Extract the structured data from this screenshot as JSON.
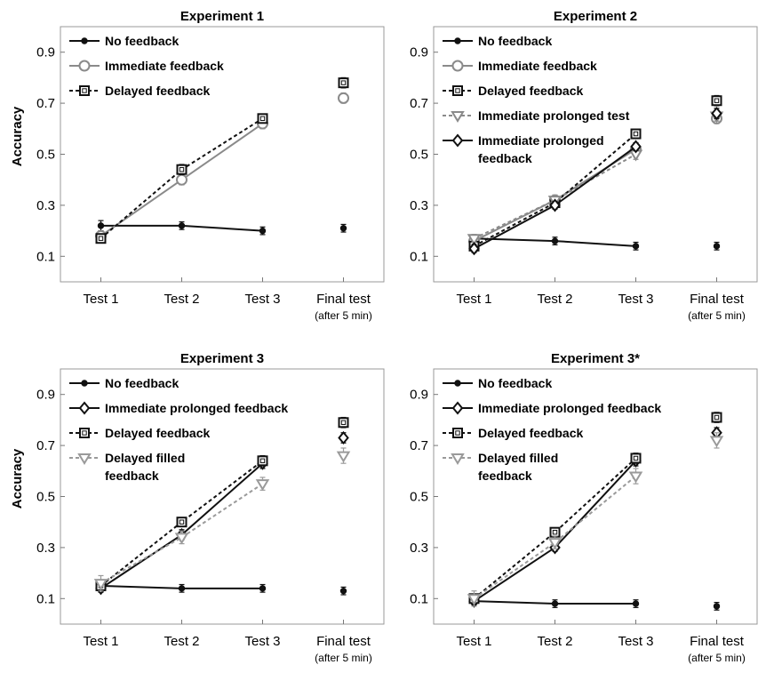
{
  "chart_data": [
    {
      "type": "line",
      "title": "Experiment 1",
      "ylabel": "Accuracy",
      "categories": [
        "Test 1",
        "Test 2",
        "Test 3",
        "Final test"
      ],
      "category_sublabels": [
        "",
        "",
        "",
        "(after 5 min)"
      ],
      "yticks": [
        "0.1",
        "0.3",
        "0.5",
        "0.7",
        "0.9"
      ],
      "ylim": [
        0.0,
        1.0
      ],
      "legend_position": "top-left",
      "series": [
        {
          "name": "No feedback",
          "values": [
            0.22,
            0.22,
            0.2,
            0.21
          ],
          "errors": [
            0.02,
            0.015,
            0.015,
            0.015
          ],
          "color": "#111111",
          "marker": "dot",
          "dash": false
        },
        {
          "name": "Immediate feedback",
          "values": [
            0.18,
            0.4,
            0.62,
            0.72
          ],
          "errors": [
            0.015,
            0.02,
            0.02,
            0.02
          ],
          "color": "#8a8a8a",
          "marker": "circle",
          "dash": false
        },
        {
          "name": "Delayed feedback",
          "values": [
            0.17,
            0.44,
            0.64,
            0.78
          ],
          "errors": [
            0.015,
            0.02,
            0.015,
            0.02
          ],
          "color": "#111111",
          "marker": "square",
          "dash": true
        }
      ]
    },
    {
      "type": "line",
      "title": "Experiment 2",
      "ylabel": "",
      "categories": [
        "Test 1",
        "Test 2",
        "Test 3",
        "Final test"
      ],
      "category_sublabels": [
        "",
        "",
        "",
        "(after 5 min)"
      ],
      "yticks": [
        "0.1",
        "0.3",
        "0.5",
        "0.7",
        "0.9"
      ],
      "ylim": [
        0.0,
        1.0
      ],
      "legend_position": "top-left",
      "series": [
        {
          "name": "No feedback",
          "values": [
            0.17,
            0.16,
            0.14,
            0.14
          ],
          "errors": [
            0.015,
            0.015,
            0.015,
            0.015
          ],
          "color": "#111111",
          "marker": "dot",
          "dash": false
        },
        {
          "name": "Immediate feedback",
          "values": [
            0.16,
            0.32,
            0.52,
            0.64
          ],
          "errors": [
            0.015,
            0.02,
            0.02,
            0.02
          ],
          "color": "#8a8a8a",
          "marker": "circle",
          "dash": false
        },
        {
          "name": "Delayed feedback",
          "values": [
            0.14,
            0.31,
            0.58,
            0.71
          ],
          "errors": [
            0.015,
            0.015,
            0.015,
            0.02
          ],
          "color": "#111111",
          "marker": "square",
          "dash": true
        },
        {
          "name": "Immediate prolonged test",
          "values": [
            0.17,
            0.32,
            0.5,
            0.65
          ],
          "errors": [
            0.015,
            0.02,
            0.02,
            0.02
          ],
          "color": "#8a8a8a",
          "marker": "triangle",
          "dash": true
        },
        {
          "name": "Immediate prolonged feedback",
          "values": [
            0.13,
            0.3,
            0.53,
            0.66
          ],
          "errors": [
            0.015,
            0.015,
            0.015,
            0.02
          ],
          "color": "#111111",
          "marker": "diamond",
          "dash": false
        }
      ],
      "legend_lines": [
        [
          "Immediate prolonged",
          "feedback"
        ]
      ]
    },
    {
      "type": "line",
      "title": "Experiment 3",
      "ylabel": "Accuracy",
      "categories": [
        "Test 1",
        "Test 2",
        "Test 3",
        "Final test"
      ],
      "category_sublabels": [
        "",
        "",
        "",
        "(after 5 min)"
      ],
      "yticks": [
        "0.1",
        "0.3",
        "0.5",
        "0.7",
        "0.9"
      ],
      "ylim": [
        0.0,
        1.0
      ],
      "legend_position": "top-left",
      "series": [
        {
          "name": "No feedback",
          "values": [
            0.15,
            0.14,
            0.14,
            0.13
          ],
          "errors": [
            0.02,
            0.015,
            0.015,
            0.015
          ],
          "color": "#111111",
          "marker": "dot",
          "dash": false
        },
        {
          "name": "Immediate prolonged feedback",
          "values": [
            0.14,
            0.35,
            0.63,
            0.73
          ],
          "errors": [
            0.015,
            0.02,
            0.02,
            0.02
          ],
          "color": "#111111",
          "marker": "diamond",
          "dash": false
        },
        {
          "name": "Delayed feedback",
          "values": [
            0.15,
            0.4,
            0.64,
            0.79
          ],
          "errors": [
            0.015,
            0.015,
            0.02,
            0.02
          ],
          "color": "#111111",
          "marker": "square",
          "dash": true
        },
        {
          "name": "Delayed filled feedback",
          "values": [
            0.16,
            0.34,
            0.55,
            0.66
          ],
          "errors": [
            0.03,
            0.025,
            0.025,
            0.03
          ],
          "color": "#9a9a9a",
          "marker": "triangle",
          "dash": true
        }
      ],
      "legend_lines": [
        [
          "Delayed filled",
          "feedback"
        ]
      ]
    },
    {
      "type": "line",
      "title": "Experiment 3*",
      "ylabel": "",
      "categories": [
        "Test 1",
        "Test 2",
        "Test 3",
        "Final test"
      ],
      "category_sublabels": [
        "",
        "",
        "",
        "(after 5 min)"
      ],
      "yticks": [
        "0.1",
        "0.3",
        "0.5",
        "0.7",
        "0.9"
      ],
      "ylim": [
        0.0,
        1.0
      ],
      "legend_position": "top-left",
      "series": [
        {
          "name": "No feedback",
          "values": [
            0.09,
            0.08,
            0.08,
            0.07
          ],
          "errors": [
            0.015,
            0.015,
            0.015,
            0.015
          ],
          "color": "#111111",
          "marker": "dot",
          "dash": false
        },
        {
          "name": "Immediate prolonged feedback",
          "values": [
            0.09,
            0.3,
            0.64,
            0.75
          ],
          "errors": [
            0.015,
            0.015,
            0.02,
            0.02
          ],
          "color": "#111111",
          "marker": "diamond",
          "dash": false
        },
        {
          "name": "Delayed feedback",
          "values": [
            0.1,
            0.36,
            0.65,
            0.81
          ],
          "errors": [
            0.015,
            0.015,
            0.02,
            0.02
          ],
          "color": "#111111",
          "marker": "square",
          "dash": true
        },
        {
          "name": "Delayed filled feedback",
          "values": [
            0.1,
            0.32,
            0.58,
            0.72
          ],
          "errors": [
            0.03,
            0.025,
            0.03,
            0.03
          ],
          "color": "#9a9a9a",
          "marker": "triangle",
          "dash": true
        }
      ],
      "legend_lines": [
        [
          "Delayed filled",
          "feedback"
        ]
      ]
    }
  ]
}
